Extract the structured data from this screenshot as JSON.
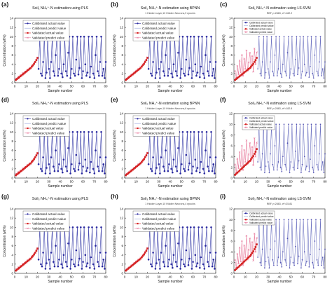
{
  "figure": {
    "xlabel": "Sample number",
    "ylabel": "Concentration (wt%)",
    "colors": {
      "calibrated_actual": "#2a2aa0",
      "calibrated_predict": "#9aa6d8",
      "validated_actual": "#d42020",
      "validated_predict": "#e87fa0",
      "axis": "#222222"
    }
  },
  "chart_data": [
    {
      "panel": "(a)",
      "method": "pls",
      "type": "line",
      "title": "Soil₁ NH₄⁺-N estimation using PLS",
      "sub": "",
      "xlim": [
        0,
        80
      ],
      "ylim": [
        0,
        14
      ],
      "xticks": [
        0,
        10,
        20,
        30,
        40,
        50,
        60,
        70,
        80
      ],
      "yticks": [
        0,
        2,
        4,
        6,
        8,
        10,
        12,
        14
      ],
      "series": [
        {
          "name": "Calibrated actual value"
        },
        {
          "name": "Calibrated predict value"
        },
        {
          "name": "Validated actual value"
        },
        {
          "name": "Validated predict value"
        }
      ]
    },
    {
      "panel": "(b)",
      "method": "bpnn",
      "type": "line",
      "title": "Soil₁ NH₄⁺-N estimation using BPNN",
      "sub": "1 Hidden Layer,10 Hidden Neurons,9 epochs",
      "xlim": [
        0,
        80
      ],
      "ylim": [
        0,
        14
      ],
      "xticks": [
        0,
        10,
        20,
        30,
        40,
        50,
        60,
        70,
        80
      ],
      "yticks": [
        0,
        2,
        4,
        6,
        8,
        10,
        12,
        14
      ],
      "series": [
        {
          "name": "Calibrated actual value"
        },
        {
          "name": "Calibrated predict value"
        },
        {
          "name": "Validated actual value"
        },
        {
          "name": "Validated predict value"
        }
      ]
    },
    {
      "panel": "(c)",
      "method": "lssvm",
      "type": "line",
      "title": "Soil₁ NH₄⁺-N estimation using  LS-SVM",
      "sub": "RBF γ=2883, σ²=182.2",
      "xlim": [
        0,
        80
      ],
      "ylim": [
        0,
        14
      ],
      "xticks": [
        0,
        10,
        20,
        30,
        40,
        50,
        60,
        70,
        80
      ],
      "yticks": [
        0,
        2,
        4,
        6,
        8,
        10,
        12,
        14
      ],
      "series": [
        {
          "name": "Calibrated actual value"
        },
        {
          "name": "Calibrated predict value"
        },
        {
          "name": "Validated actual value"
        },
        {
          "name": "Validated predict value"
        }
      ]
    },
    {
      "panel": "(d)",
      "method": "pls",
      "type": "line",
      "title": "Soil₂ NH₄⁺-N estimation using PLS",
      "sub": "",
      "xlim": [
        0,
        80
      ],
      "ylim": [
        0,
        14
      ],
      "xticks": [
        0,
        10,
        20,
        30,
        40,
        50,
        60,
        70,
        80
      ],
      "yticks": [
        0,
        2,
        4,
        6,
        8,
        10,
        12,
        14
      ],
      "series": [
        {
          "name": "Calibrated actual value"
        },
        {
          "name": "Calibrated predict value"
        },
        {
          "name": "Validated actual value"
        },
        {
          "name": "Validated predict value"
        }
      ]
    },
    {
      "panel": "(e)",
      "method": "bpnn",
      "type": "line",
      "title": "Soil₂ NH₄⁺-N estimation using BPNN",
      "sub": "1 Hidden Layer,10 Hidden Neurons,6 epochs",
      "xlim": [
        0,
        80
      ],
      "ylim": [
        0,
        14
      ],
      "xticks": [
        0,
        10,
        20,
        30,
        40,
        50,
        60,
        70,
        80
      ],
      "yticks": [
        0,
        2,
        4,
        6,
        8,
        10,
        12,
        14
      ],
      "series": [
        {
          "name": "Calibrated actual value"
        },
        {
          "name": "Calibrated predict value"
        },
        {
          "name": "Validated actual value"
        },
        {
          "name": "Validated predict value"
        }
      ]
    },
    {
      "panel": "(f)",
      "method": "lssvm",
      "type": "line",
      "title": "Soil₂ NH₄⁺-N estimation using  LS-SVM",
      "sub": "RBF γ=2883, σ²=182.8",
      "xlim": [
        0,
        80
      ],
      "ylim": [
        0,
        12
      ],
      "xticks": [
        0,
        10,
        20,
        30,
        40,
        50,
        60,
        70,
        80
      ],
      "yticks": [
        0,
        2,
        4,
        6,
        8,
        10,
        12
      ],
      "series": [
        {
          "name": "Calibrated actual value"
        },
        {
          "name": "Calibrated predict value"
        },
        {
          "name": "Validated actual value"
        },
        {
          "name": "Validated predict value"
        }
      ]
    },
    {
      "panel": "(g)",
      "method": "pls",
      "type": "line",
      "title": "Soil₃ NH₄⁺-N estimation using PLS",
      "sub": "",
      "xlim": [
        0,
        80
      ],
      "ylim": [
        0,
        14
      ],
      "xticks": [
        0,
        10,
        20,
        30,
        40,
        50,
        60,
        70,
        80
      ],
      "yticks": [
        0,
        2,
        4,
        6,
        8,
        10,
        12,
        14
      ],
      "series": [
        {
          "name": "Calibrated actual value"
        },
        {
          "name": "Calibrated predict value"
        },
        {
          "name": "Validated actual value"
        },
        {
          "name": "Validated predict value"
        }
      ]
    },
    {
      "panel": "(h)",
      "method": "bpnn",
      "type": "line",
      "title": "Soil₃ NH₄⁺-N estimation using BPNN",
      "sub": "1 Hidden Layer,10 Hidden Neurons,4 epochs",
      "xlim": [
        0,
        80
      ],
      "ylim": [
        0,
        14
      ],
      "xticks": [
        0,
        10,
        20,
        30,
        40,
        50,
        60,
        70,
        80
      ],
      "yticks": [
        0,
        2,
        4,
        6,
        8,
        10,
        12,
        14
      ],
      "series": [
        {
          "name": "Calibrated actual value"
        },
        {
          "name": "Calibrated predict value"
        },
        {
          "name": "Validated actual value"
        },
        {
          "name": "Validated predict value"
        }
      ]
    },
    {
      "panel": "(i)",
      "method": "lssvm",
      "type": "line",
      "title": "Soil₃ NH₄⁺-N estimation using  LS-SVM",
      "sub": "RBF γ=2883, σ²=25.81",
      "xlim": [
        0,
        80
      ],
      "ylim": [
        0,
        12
      ],
      "xticks": [
        0,
        10,
        20,
        30,
        40,
        50,
        60,
        70,
        80
      ],
      "yticks": [
        0,
        2,
        4,
        6,
        8,
        10,
        12
      ],
      "series": [
        {
          "name": "Calibrated actual value"
        },
        {
          "name": "Calibrated predict value"
        },
        {
          "name": "Validated actual value"
        },
        {
          "name": "Validated predict value"
        }
      ]
    }
  ],
  "calibration_samples": {
    "x": [
      21,
      22,
      23,
      24,
      25,
      26,
      27,
      28,
      29,
      30,
      31,
      32,
      33,
      34,
      35,
      36,
      37,
      38,
      39,
      40,
      41,
      42,
      43,
      44,
      45,
      46,
      47,
      48,
      49,
      50,
      51,
      52,
      53,
      54,
      55,
      56,
      57,
      58,
      59,
      60,
      61,
      62,
      63,
      64,
      65,
      66,
      67,
      68,
      69,
      70,
      71,
      72,
      73,
      74,
      75,
      76,
      77,
      78,
      79,
      80
    ],
    "actual": [
      3.0,
      10.0,
      2.0,
      1.5,
      4.5,
      10.0,
      1.0,
      2.2,
      10.0,
      3.0,
      1.0,
      4.5,
      10.0,
      2.5,
      1.5,
      6.0,
      10.0,
      1.5,
      3.0,
      10.0,
      2.0,
      1.2,
      4.0,
      10.0,
      2.5,
      1.5,
      6.5,
      10.0,
      1.0,
      3.0,
      10.0,
      2.0,
      1.5,
      5.0,
      10.0,
      1.8,
      3.2,
      10.0,
      1.0,
      2.5,
      10.0,
      4.0,
      1.5,
      2.2,
      10.0,
      1.2,
      3.5,
      10.0,
      2.0,
      1.0,
      6.0,
      10.0,
      2.5,
      1.5,
      4.5,
      10.0,
      1.5,
      3.0,
      1.0,
      4.5
    ],
    "predict": [
      3.2,
      9.6,
      2.3,
      1.8,
      4.3,
      9.7,
      1.3,
      2.4,
      9.6,
      3.1,
      1.3,
      4.6,
      9.7,
      2.7,
      1.7,
      5.8,
      9.6,
      1.8,
      3.1,
      9.7,
      2.2,
      1.5,
      4.1,
      9.6,
      2.6,
      1.7,
      6.3,
      9.7,
      1.3,
      3.2,
      9.6,
      2.2,
      1.7,
      4.9,
      9.7,
      2.0,
      3.3,
      9.6,
      1.3,
      2.6,
      9.7,
      4.0,
      1.7,
      2.4,
      9.6,
      1.5,
      3.5,
      9.7,
      2.2,
      1.3,
      5.9,
      9.6,
      2.6,
      1.7,
      4.4,
      9.7,
      1.7,
      3.1,
      1.3,
      4.4
    ]
  },
  "validation_samples": {
    "x": [
      1,
      2,
      3,
      4,
      5,
      6,
      7,
      8,
      9,
      10,
      11,
      12,
      13,
      14,
      15,
      16,
      17,
      18,
      19,
      20
    ],
    "actual": [
      0.6,
      0.8,
      1.0,
      1.2,
      1.4,
      1.6,
      1.8,
      2.0,
      2.2,
      2.4,
      2.6,
      2.8,
      3.0,
      3.2,
      3.5,
      3.8,
      4.1,
      4.5,
      4.9,
      5.4
    ],
    "predict_pls": [
      0.9,
      0.7,
      1.3,
      1.0,
      1.6,
      1.5,
      2.1,
      1.9,
      2.4,
      2.3,
      2.8,
      2.7,
      3.2,
      3.1,
      3.7,
      3.6,
      4.3,
      4.4,
      5.0,
      5.2
    ],
    "predict_bpnn": [
      0.8,
      0.9,
      1.2,
      1.3,
      1.5,
      1.8,
      1.9,
      2.2,
      2.3,
      2.6,
      2.7,
      3.0,
      3.1,
      3.4,
      3.6,
      4.0,
      4.2,
      4.7,
      5.0,
      5.5
    ],
    "predict_lssvm": [
      2.5,
      1.0,
      3.6,
      1.8,
      4.8,
      2.2,
      6.0,
      1.5,
      5.2,
      3.0,
      7.0,
      2.6,
      4.4,
      6.5,
      3.2,
      5.8,
      2.4,
      7.4,
      4.0,
      6.6
    ]
  }
}
